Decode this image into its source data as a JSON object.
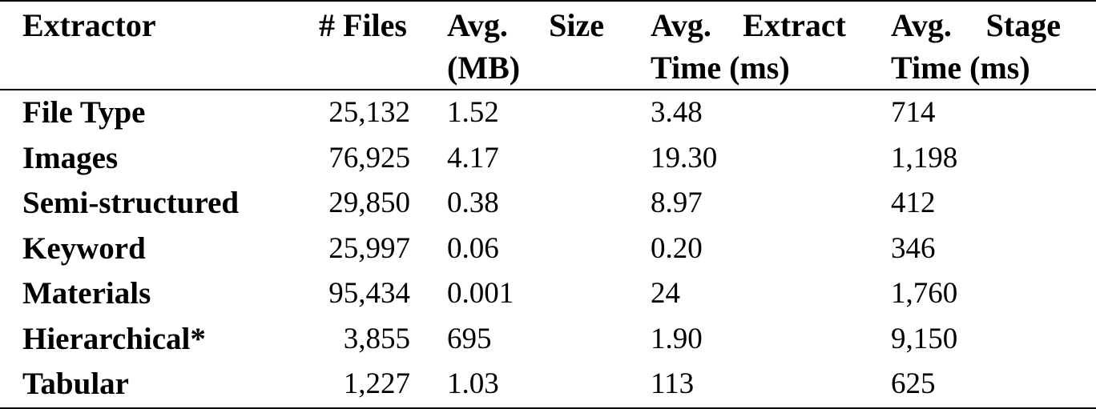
{
  "table": {
    "headers": {
      "extractor": "Extractor",
      "files": "# Files",
      "size_line1_a": "Avg.",
      "size_line1_b": "Size",
      "size_line2": "(MB)",
      "extract_line1_a": "Avg.",
      "extract_line1_b": "Extract",
      "extract_line2": "Time (ms)",
      "stage_line1_a": "Avg.",
      "stage_line1_b": "Stage",
      "stage_line2": "Time (ms)"
    },
    "rows": [
      {
        "extractor": "File Type",
        "files": "25,132",
        "size": "1.52",
        "extract": "3.48",
        "stage": "714"
      },
      {
        "extractor": "Images",
        "files": "76,925",
        "size": "4.17",
        "extract": "19.30",
        "stage": "1,198"
      },
      {
        "extractor": "Semi-structured",
        "files": "29,850",
        "size": "0.38",
        "extract": "8.97",
        "stage": "412"
      },
      {
        "extractor": "Keyword",
        "files": "25,997",
        "size": "0.06",
        "extract": "0.20",
        "stage": "346"
      },
      {
        "extractor": "Materials",
        "files": "95,434",
        "size": "0.001",
        "extract": "24",
        "stage": "1,760"
      },
      {
        "extractor": "Hierarchical*",
        "files": "3,855",
        "size": "695",
        "extract": "1.90",
        "stage": "9,150"
      },
      {
        "extractor": "Tabular",
        "files": "1,227",
        "size": "1.03",
        "extract": "113",
        "stage": "625"
      }
    ]
  }
}
